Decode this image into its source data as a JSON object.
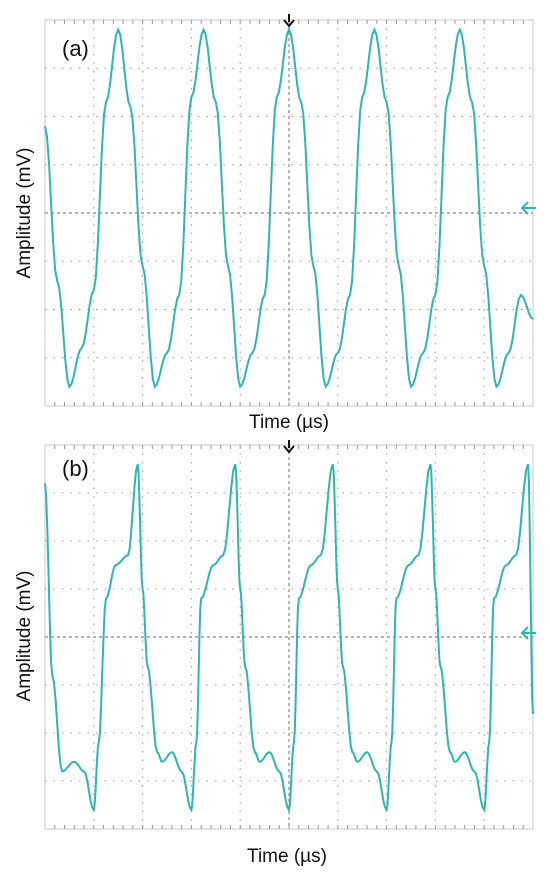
{
  "colors": {
    "trace": "#2fb5b0",
    "grid": "#9a9a9a",
    "frame": "#c8c8c8",
    "marker": "#111111"
  },
  "chart_data": [
    {
      "type": "line",
      "panel_label": "(a)",
      "xlabel": "Time (µs)",
      "ylabel": "Amplitude (mV)",
      "grid": true,
      "divisions": {
        "x": 10,
        "y": 8
      },
      "xlim": [
        0,
        10
      ],
      "ylim": [
        -4,
        4
      ],
      "series": [
        {
          "x": [
            0,
            0.25,
            0.5,
            0.75,
            1.0,
            1.25,
            1.5,
            1.75,
            2.0,
            2.25,
            2.5,
            2.75,
            3.0,
            3.25,
            3.5,
            3.75,
            4.0,
            4.25,
            4.5,
            4.75,
            5.0,
            5.25,
            5.5,
            5.75,
            6.0,
            6.25,
            6.5,
            6.75,
            7.0,
            7.25,
            7.5,
            7.75,
            8.0,
            8.25,
            8.5,
            8.75,
            9.0,
            9.25,
            9.5,
            9.75,
            10.0
          ],
          "y": [
            1.8,
            -1.4,
            -3.6,
            -2.8,
            -1.6,
            2.3,
            3.8,
            2.2,
            -1.1,
            -3.6,
            -2.9,
            -1.7,
            2.4,
            3.8,
            2.3,
            -1.1,
            -3.6,
            -2.9,
            -1.7,
            2.4,
            3.8,
            2.3,
            -1.1,
            -3.6,
            -2.9,
            -1.7,
            2.4,
            3.8,
            2.3,
            -1.1,
            -3.6,
            -2.9,
            -1.7,
            2.4,
            3.8,
            2.3,
            -1.1,
            -3.6,
            -2.9,
            -1.7,
            -2.2
          ]
        }
      ]
    },
    {
      "type": "line",
      "panel_label": "(b)",
      "xlabel": "Time (µs)",
      "ylabel": "Amplitude (mV)",
      "grid": true,
      "divisions": {
        "x": 10,
        "y": 8
      },
      "xlim": [
        0,
        10
      ],
      "ylim": [
        -4,
        4
      ],
      "series": [
        {
          "x": [
            0,
            0.15,
            0.35,
            0.6,
            0.8,
            1.0,
            1.1,
            1.25,
            1.45,
            1.7,
            1.9,
            2.0,
            2.1,
            2.3,
            2.4,
            2.6,
            2.8,
            3.0,
            3.1,
            3.2,
            3.45,
            3.65,
            3.9,
            4.0,
            4.1,
            4.3,
            4.4,
            4.6,
            4.8,
            5.0,
            5.1,
            5.2,
            5.45,
            5.65,
            5.9,
            6.0,
            6.1,
            6.3,
            6.4,
            6.6,
            6.8,
            7.0,
            7.1,
            7.2,
            7.45,
            7.65,
            7.9,
            8.0,
            8.1,
            8.3,
            8.4,
            8.6,
            8.8,
            9.0,
            9.1,
            9.2,
            9.45,
            9.65,
            9.9,
            10.0
          ],
          "y": [
            3.2,
            -0.8,
            -2.8,
            -2.6,
            -2.8,
            -3.6,
            -2.2,
            0.8,
            1.5,
            1.7,
            3.6,
            1.0,
            -0.6,
            -2.4,
            -2.6,
            -2.4,
            -2.8,
            -3.6,
            -2.2,
            0.8,
            1.5,
            1.7,
            3.6,
            1.0,
            -0.6,
            -2.4,
            -2.6,
            -2.4,
            -2.8,
            -3.6,
            -2.2,
            0.8,
            1.5,
            1.7,
            3.6,
            1.0,
            -0.6,
            -2.4,
            -2.6,
            -2.4,
            -2.8,
            -3.6,
            -2.2,
            0.8,
            1.5,
            1.7,
            3.6,
            1.0,
            -0.6,
            -2.4,
            -2.6,
            -2.4,
            -2.8,
            -3.6,
            -2.2,
            0.8,
            1.5,
            1.7,
            3.6,
            -1.6
          ]
        }
      ]
    }
  ]
}
